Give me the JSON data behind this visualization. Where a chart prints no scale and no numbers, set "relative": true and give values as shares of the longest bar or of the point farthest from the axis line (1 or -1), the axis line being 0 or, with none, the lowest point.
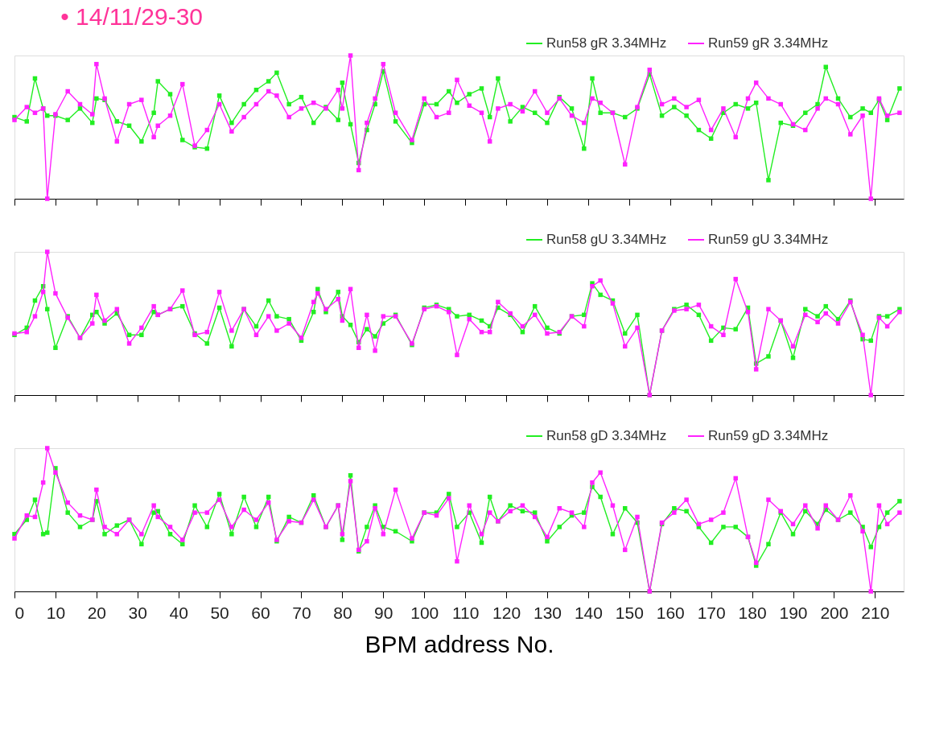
{
  "chart_data": [
    {
      "type": "line",
      "relative": true,
      "title": "• 14/11/29-30",
      "marker": "square",
      "legend": "top right",
      "tick_labels": false,
      "xlim": [
        0,
        217
      ],
      "xticks": [
        0,
        10,
        20,
        30,
        40,
        50,
        60,
        70,
        80,
        90,
        100,
        110,
        120,
        130,
        140,
        150,
        160,
        170,
        180,
        190,
        200,
        210
      ],
      "x": [
        0,
        3,
        5,
        7,
        8,
        10,
        13,
        16,
        19,
        20,
        22,
        25,
        28,
        31,
        34,
        35,
        38,
        41,
        44,
        47,
        50,
        53,
        56,
        59,
        62,
        64,
        67,
        70,
        73,
        76,
        79,
        80,
        82,
        84,
        86,
        88,
        90,
        93,
        97,
        100,
        103,
        106,
        108,
        111,
        114,
        116,
        118,
        121,
        124,
        127,
        130,
        133,
        136,
        139,
        141,
        143,
        146,
        149,
        152,
        155,
        158,
        161,
        164,
        167,
        170,
        173,
        176,
        179,
        181,
        184,
        187,
        190,
        193,
        196,
        198,
        201,
        204,
        207,
        209,
        211,
        213,
        216
      ],
      "series": [
        {
          "name": "Run58 gR 3.34MHz",
          "color": "#22ee22",
          "line_style": "solid",
          "values": [
            0.57,
            0.54,
            0.84,
            0.63,
            0.58,
            0.58,
            0.55,
            0.63,
            0.53,
            0.7,
            0.69,
            0.54,
            0.51,
            0.4,
            0.6,
            0.82,
            0.73,
            0.41,
            0.36,
            0.35,
            0.72,
            0.53,
            0.66,
            0.76,
            0.82,
            0.88,
            0.66,
            0.71,
            0.53,
            0.64,
            0.55,
            0.81,
            0.52,
            0.25,
            0.48,
            0.66,
            0.89,
            0.54,
            0.39,
            0.66,
            0.66,
            0.75,
            0.67,
            0.73,
            0.77,
            0.57,
            0.84,
            0.54,
            0.64,
            0.6,
            0.53,
            0.71,
            0.63,
            0.35,
            0.84,
            0.6,
            0.6,
            0.57,
            0.63,
            0.87,
            0.58,
            0.64,
            0.58,
            0.48,
            0.42,
            0.6,
            0.66,
            0.63,
            0.67,
            0.13,
            0.53,
            0.51,
            0.6,
            0.66,
            0.92,
            0.7,
            0.57,
            0.63,
            0.6,
            0.69,
            0.55,
            0.77
          ]
        },
        {
          "name": "Run59 gR 3.34MHz",
          "color": "#ff22ff",
          "line_style": "solid",
          "values": [
            0.55,
            0.64,
            0.6,
            0.63,
            0,
            0.59,
            0.75,
            0.66,
            0.59,
            0.94,
            0.7,
            0.4,
            0.66,
            0.69,
            0.43,
            0.51,
            0.58,
            0.8,
            0.37,
            0.48,
            0.66,
            0.47,
            0.57,
            0.66,
            0.75,
            0.72,
            0.57,
            0.63,
            0.67,
            0.63,
            0.76,
            0.63,
            1,
            0.2,
            0.53,
            0.7,
            0.94,
            0.6,
            0.41,
            0.7,
            0.57,
            0.6,
            0.83,
            0.65,
            0.6,
            0.4,
            0.63,
            0.66,
            0.61,
            0.75,
            0.6,
            0.7,
            0.58,
            0.53,
            0.7,
            0.67,
            0.6,
            0.24,
            0.64,
            0.9,
            0.66,
            0.7,
            0.64,
            0.69,
            0.48,
            0.63,
            0.43,
            0.7,
            0.81,
            0.7,
            0.66,
            0.52,
            0.48,
            0.63,
            0.7,
            0.66,
            0.45,
            0.58,
            0,
            0.7,
            0.58,
            0.6
          ]
        }
      ]
    },
    {
      "type": "line",
      "relative": true,
      "marker": "square",
      "legend": "top right",
      "tick_labels": false,
      "xlim": [
        0,
        217
      ],
      "xticks": [
        0,
        10,
        20,
        30,
        40,
        50,
        60,
        70,
        80,
        90,
        100,
        110,
        120,
        130,
        140,
        150,
        160,
        170,
        180,
        190,
        200,
        210
      ],
      "x": [
        0,
        3,
        5,
        7,
        8,
        10,
        13,
        16,
        19,
        20,
        22,
        25,
        28,
        31,
        34,
        35,
        38,
        41,
        44,
        47,
        50,
        53,
        56,
        59,
        62,
        64,
        67,
        70,
        73,
        74,
        76,
        79,
        80,
        82,
        84,
        86,
        88,
        90,
        93,
        97,
        100,
        103,
        106,
        108,
        111,
        114,
        116,
        118,
        121,
        124,
        127,
        130,
        133,
        136,
        139,
        141,
        143,
        146,
        149,
        152,
        155,
        158,
        161,
        164,
        167,
        170,
        173,
        176,
        179,
        181,
        184,
        187,
        190,
        193,
        196,
        198,
        201,
        204,
        207,
        209,
        211,
        213,
        216
      ],
      "series": [
        {
          "name": "Run58 gU 3.34MHz",
          "color": "#22ee22",
          "line_style": "solid",
          "values": [
            0.42,
            0.47,
            0.66,
            0.76,
            0.6,
            0.33,
            0.55,
            0.4,
            0.56,
            0.58,
            0.5,
            0.57,
            0.42,
            0.42,
            0.58,
            0.56,
            0.6,
            0.62,
            0.43,
            0.36,
            0.61,
            0.34,
            0.6,
            0.48,
            0.66,
            0.55,
            0.53,
            0.38,
            0.58,
            0.74,
            0.58,
            0.72,
            0.55,
            0.49,
            0.37,
            0.46,
            0.41,
            0.5,
            0.56,
            0.35,
            0.61,
            0.63,
            0.6,
            0.55,
            0.56,
            0.52,
            0.48,
            0.61,
            0.56,
            0.44,
            0.62,
            0.47,
            0.43,
            0.55,
            0.56,
            0.78,
            0.7,
            0.66,
            0.43,
            0.56,
            0,
            0.45,
            0.6,
            0.63,
            0.56,
            0.38,
            0.47,
            0.46,
            0.61,
            0.22,
            0.27,
            0.52,
            0.26,
            0.6,
            0.55,
            0.62,
            0.53,
            0.66,
            0.39,
            0.38,
            0.55,
            0.55,
            0.6
          ]
        },
        {
          "name": "Run59 gU 3.34MHz",
          "color": "#ff22ff",
          "line_style": "solid",
          "values": [
            0.43,
            0.44,
            0.55,
            0.72,
            1,
            0.71,
            0.54,
            0.4,
            0.5,
            0.7,
            0.52,
            0.6,
            0.36,
            0.47,
            0.62,
            0.56,
            0.6,
            0.73,
            0.42,
            0.44,
            0.72,
            0.45,
            0.6,
            0.42,
            0.55,
            0.45,
            0.5,
            0.4,
            0.65,
            0.71,
            0.6,
            0.67,
            0.52,
            0.74,
            0.33,
            0.56,
            0.31,
            0.55,
            0.55,
            0.36,
            0.6,
            0.62,
            0.58,
            0.28,
            0.53,
            0.44,
            0.44,
            0.65,
            0.57,
            0.48,
            0.56,
            0.43,
            0.44,
            0.55,
            0.48,
            0.76,
            0.8,
            0.64,
            0.34,
            0.47,
            0,
            0.45,
            0.59,
            0.6,
            0.63,
            0.48,
            0.42,
            0.81,
            0.58,
            0.18,
            0.6,
            0.52,
            0.34,
            0.56,
            0.51,
            0.57,
            0.5,
            0.65,
            0.42,
            0,
            0.54,
            0.48,
            0.58
          ]
        }
      ]
    },
    {
      "type": "line",
      "relative": true,
      "marker": "square",
      "legend": "top right",
      "tick_labels": "x",
      "xlabel": "BPM address No.",
      "xlim": [
        0,
        217
      ],
      "xticks": [
        0,
        10,
        20,
        30,
        40,
        50,
        60,
        70,
        80,
        90,
        100,
        110,
        120,
        130,
        140,
        150,
        160,
        170,
        180,
        190,
        200,
        210
      ],
      "x": [
        0,
        3,
        5,
        7,
        8,
        10,
        13,
        16,
        19,
        20,
        22,
        25,
        28,
        31,
        34,
        35,
        38,
        41,
        44,
        47,
        50,
        53,
        56,
        59,
        62,
        64,
        67,
        70,
        73,
        76,
        79,
        80,
        82,
        84,
        86,
        88,
        90,
        93,
        97,
        100,
        103,
        106,
        108,
        111,
        114,
        116,
        118,
        121,
        124,
        127,
        130,
        133,
        136,
        139,
        141,
        143,
        146,
        149,
        152,
        155,
        158,
        161,
        164,
        167,
        170,
        173,
        176,
        179,
        181,
        184,
        187,
        190,
        193,
        196,
        198,
        201,
        204,
        207,
        209,
        211,
        213,
        216
      ],
      "series": [
        {
          "name": "Run58 gD 3.34MHz",
          "color": "#22ee22",
          "line_style": "solid",
          "values": [
            0.4,
            0.5,
            0.64,
            0.4,
            0.41,
            0.86,
            0.55,
            0.45,
            0.5,
            0.63,
            0.4,
            0.46,
            0.5,
            0.33,
            0.55,
            0.56,
            0.4,
            0.33,
            0.6,
            0.45,
            0.68,
            0.4,
            0.66,
            0.45,
            0.66,
            0.35,
            0.52,
            0.48,
            0.67,
            0.45,
            0.6,
            0.36,
            0.81,
            0.28,
            0.45,
            0.6,
            0.45,
            0.42,
            0.35,
            0.55,
            0.55,
            0.68,
            0.45,
            0.55,
            0.34,
            0.66,
            0.49,
            0.6,
            0.56,
            0.55,
            0.35,
            0.45,
            0.53,
            0.55,
            0.73,
            0.66,
            0.4,
            0.58,
            0.48,
            0,
            0.47,
            0.58,
            0.56,
            0.45,
            0.34,
            0.45,
            0.45,
            0.38,
            0.18,
            0.33,
            0.55,
            0.4,
            0.56,
            0.47,
            0.57,
            0.5,
            0.55,
            0.45,
            0.31,
            0.45,
            0.55,
            0.63
          ]
        },
        {
          "name": "Run59 gD 3.34MHz",
          "color": "#ff22ff",
          "line_style": "solid",
          "values": [
            0.37,
            0.53,
            0.52,
            0.76,
            1,
            0.83,
            0.62,
            0.53,
            0.5,
            0.71,
            0.45,
            0.4,
            0.5,
            0.4,
            0.6,
            0.52,
            0.45,
            0.36,
            0.55,
            0.55,
            0.64,
            0.45,
            0.57,
            0.5,
            0.62,
            0.36,
            0.49,
            0.48,
            0.64,
            0.45,
            0.6,
            0.4,
            0.77,
            0.29,
            0.35,
            0.58,
            0.4,
            0.71,
            0.37,
            0.55,
            0.53,
            0.65,
            0.21,
            0.6,
            0.4,
            0.55,
            0.49,
            0.56,
            0.6,
            0.52,
            0.38,
            0.58,
            0.55,
            0.45,
            0.76,
            0.83,
            0.6,
            0.29,
            0.52,
            0,
            0.48,
            0.55,
            0.64,
            0.47,
            0.5,
            0.55,
            0.79,
            0.38,
            0.2,
            0.64,
            0.56,
            0.47,
            0.6,
            0.44,
            0.6,
            0.5,
            0.67,
            0.42,
            0,
            0.6,
            0.47,
            0.55
          ]
        }
      ]
    }
  ]
}
